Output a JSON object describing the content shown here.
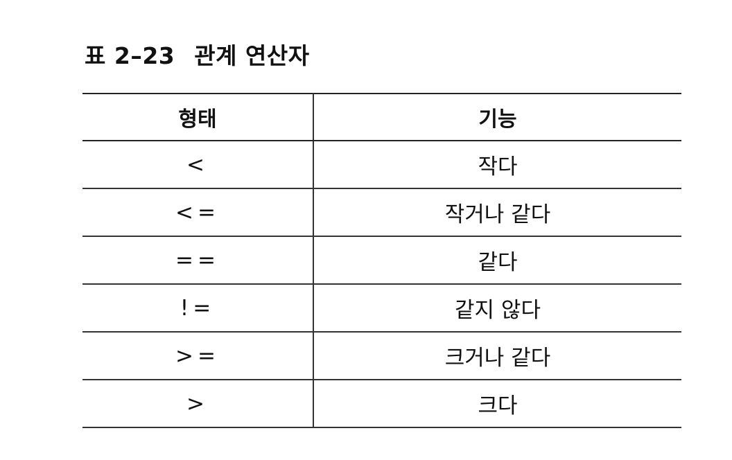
{
  "caption": {
    "label": "표",
    "number": "2–23",
    "title": "관계 연산자"
  },
  "table": {
    "headers": [
      "형태",
      "기능"
    ],
    "rows": [
      [
        "<",
        "작다"
      ],
      [
        "<=",
        "작거나 같다"
      ],
      [
        "==",
        "같다"
      ],
      [
        "!=",
        "같지 않다"
      ],
      [
        ">=",
        "크거나 같다"
      ],
      [
        ">",
        "크다"
      ]
    ]
  }
}
